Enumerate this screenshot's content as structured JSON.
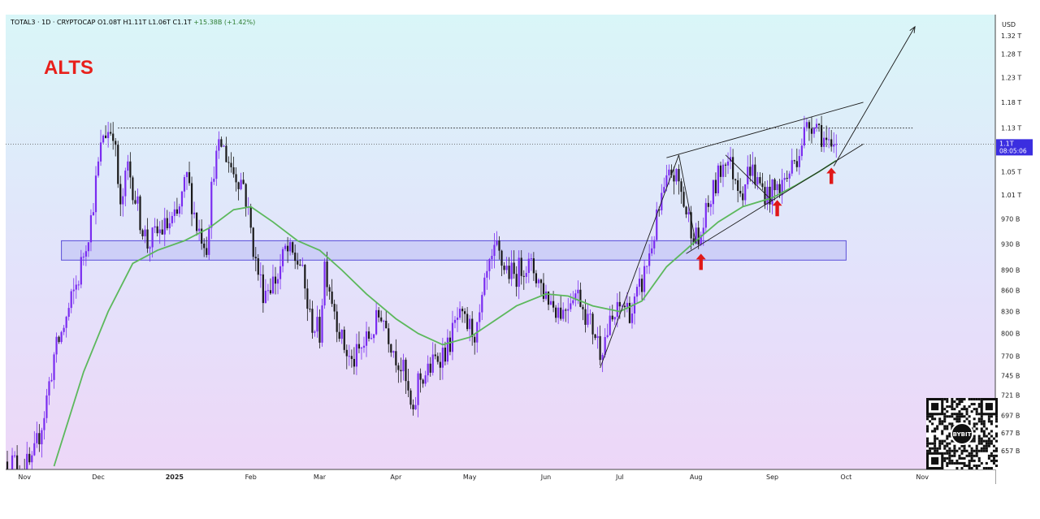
{
  "header": {
    "symbol": "TOTAL3 · 1D · CRYPTOCAP",
    "o_label": "O",
    "o_value": "1.08T",
    "h_label": "H",
    "h_value": "1.11T",
    "l_label": "L",
    "l_value": "1.06T",
    "c_label": "C",
    "c_value": "1.1T",
    "change": "+15.38B (+1.42%)"
  },
  "annotation": {
    "text": "ALTS",
    "color": "#e8201b"
  },
  "currency_label": "USD",
  "last_price": {
    "label": "1.1T",
    "countdown": "08:05:06",
    "value": 1.1
  },
  "qr_logo_text": "BYBIT",
  "colors": {
    "bull": "#7a2cf0",
    "bear": "#1a1a1a",
    "ma": "#5cb85c",
    "zone_fill": "#c6c8f6",
    "zone_border": "#5a4ed8",
    "arrow": "#e01818",
    "price_tag": "#3b2ee0"
  },
  "chart_data": {
    "type": "candlestick",
    "title": "",
    "xlabel": "",
    "ylabel": "",
    "y_scale": "log",
    "ylim": [
      0.64,
      1.36
    ],
    "xlim": [
      "2024-10-25",
      "2025-11-30"
    ],
    "y_ticks": [
      {
        "value": 1.32,
        "label": "1.32 T"
      },
      {
        "value": 1.28,
        "label": "1.28 T"
      },
      {
        "value": 1.23,
        "label": "1.23 T"
      },
      {
        "value": 1.18,
        "label": "1.18 T"
      },
      {
        "value": 1.13,
        "label": "1.13 T"
      },
      {
        "value": 1.05,
        "label": "1.05 T"
      },
      {
        "value": 1.01,
        "label": "1.01 T"
      },
      {
        "value": 0.97,
        "label": "970 B"
      },
      {
        "value": 0.93,
        "label": "930 B"
      },
      {
        "value": 0.89,
        "label": "890 B"
      },
      {
        "value": 0.86,
        "label": "860 B"
      },
      {
        "value": 0.83,
        "label": "830 B"
      },
      {
        "value": 0.8,
        "label": "800 B"
      },
      {
        "value": 0.77,
        "label": "770 B"
      },
      {
        "value": 0.745,
        "label": "745 B"
      },
      {
        "value": 0.721,
        "label": "721 B"
      },
      {
        "value": 0.697,
        "label": "697 B"
      },
      {
        "value": 0.677,
        "label": "677 B"
      },
      {
        "value": 0.657,
        "label": "657 B"
      }
    ],
    "x_ticks": [
      {
        "date": "2024-11-01",
        "label": "Nov"
      },
      {
        "date": "2024-12-01",
        "label": "Dec"
      },
      {
        "date": "2025-01-01",
        "label": "2025"
      },
      {
        "date": "2025-02-01",
        "label": "Feb"
      },
      {
        "date": "2025-03-01",
        "label": "Mar"
      },
      {
        "date": "2025-04-01",
        "label": "Apr"
      },
      {
        "date": "2025-05-01",
        "label": "May"
      },
      {
        "date": "2025-06-01",
        "label": "Jun"
      },
      {
        "date": "2025-07-01",
        "label": "Jul"
      },
      {
        "date": "2025-08-01",
        "label": "Aug"
      },
      {
        "date": "2025-09-01",
        "label": "Sep"
      },
      {
        "date": "2025-10-01",
        "label": "Oct"
      },
      {
        "date": "2025-11-01",
        "label": "Nov"
      }
    ],
    "price_anchors": [
      [
        "2024-10-25",
        0.645
      ],
      [
        "2024-11-04",
        0.64
      ],
      [
        "2024-11-09",
        0.7
      ],
      [
        "2024-11-13",
        0.77
      ],
      [
        "2024-11-18",
        0.82
      ],
      [
        "2024-11-23",
        0.88
      ],
      [
        "2024-11-28",
        0.97
      ],
      [
        "2024-12-03",
        1.12
      ],
      [
        "2024-12-07",
        1.13
      ],
      [
        "2024-12-10",
        0.98
      ],
      [
        "2024-12-13",
        1.06
      ],
      [
        "2024-12-18",
        0.97
      ],
      [
        "2024-12-21",
        0.93
      ],
      [
        "2024-12-26",
        0.95
      ],
      [
        "2025-01-02",
        0.97
      ],
      [
        "2025-01-06",
        1.04
      ],
      [
        "2025-01-10",
        0.96
      ],
      [
        "2025-01-14",
        0.93
      ],
      [
        "2025-01-17",
        1.06
      ],
      [
        "2025-01-20",
        1.1
      ],
      [
        "2025-01-25",
        1.05
      ],
      [
        "2025-01-29",
        1.03
      ],
      [
        "2025-02-03",
        0.9
      ],
      [
        "2025-02-06",
        0.86
      ],
      [
        "2025-02-12",
        0.88
      ],
      [
        "2025-02-15",
        0.92
      ],
      [
        "2025-02-21",
        0.9
      ],
      [
        "2025-02-25",
        0.82
      ],
      [
        "2025-03-01",
        0.8
      ],
      [
        "2025-03-03",
        0.9
      ],
      [
        "2025-03-06",
        0.85
      ],
      [
        "2025-03-10",
        0.79
      ],
      [
        "2025-03-14",
        0.76
      ],
      [
        "2025-03-18",
        0.78
      ],
      [
        "2025-03-22",
        0.8
      ],
      [
        "2025-03-26",
        0.83
      ],
      [
        "2025-03-31",
        0.78
      ],
      [
        "2025-04-04",
        0.75
      ],
      [
        "2025-04-08",
        0.69
      ],
      [
        "2025-04-10",
        0.74
      ],
      [
        "2025-04-14",
        0.75
      ],
      [
        "2025-04-18",
        0.77
      ],
      [
        "2025-04-22",
        0.78
      ],
      [
        "2025-04-26",
        0.82
      ],
      [
        "2025-04-30",
        0.81
      ],
      [
        "2025-05-04",
        0.8
      ],
      [
        "2025-05-08",
        0.88
      ],
      [
        "2025-05-12",
        0.92
      ],
      [
        "2025-05-14",
        0.9
      ],
      [
        "2025-05-19",
        0.88
      ],
      [
        "2025-05-23",
        0.9
      ],
      [
        "2025-05-27",
        0.89
      ],
      [
        "2025-05-31",
        0.86
      ],
      [
        "2025-06-04",
        0.84
      ],
      [
        "2025-06-08",
        0.83
      ],
      [
        "2025-06-12",
        0.86
      ],
      [
        "2025-06-15",
        0.85
      ],
      [
        "2025-06-18",
        0.82
      ],
      [
        "2025-06-21",
        0.8
      ],
      [
        "2025-06-23",
        0.78
      ],
      [
        "2025-06-27",
        0.81
      ],
      [
        "2025-07-02",
        0.84
      ],
      [
        "2025-07-06",
        0.83
      ],
      [
        "2025-07-10",
        0.87
      ],
      [
        "2025-07-14",
        0.93
      ],
      [
        "2025-07-18",
        1.0
      ],
      [
        "2025-07-22",
        1.05
      ],
      [
        "2025-07-25",
        1.03
      ],
      [
        "2025-07-28",
        0.98
      ],
      [
        "2025-08-02",
        0.93
      ],
      [
        "2025-08-06",
        0.99
      ],
      [
        "2025-08-10",
        1.04
      ],
      [
        "2025-08-13",
        1.08
      ],
      [
        "2025-08-16",
        1.05
      ],
      [
        "2025-08-20",
        1.02
      ],
      [
        "2025-08-23",
        1.06
      ],
      [
        "2025-08-26",
        1.03
      ],
      [
        "2025-08-30",
        1.01
      ],
      [
        "2025-09-03",
        1.02
      ],
      [
        "2025-09-07",
        1.04
      ],
      [
        "2025-09-11",
        1.08
      ],
      [
        "2025-09-14",
        1.12
      ],
      [
        "2025-09-18",
        1.15
      ],
      [
        "2025-09-22",
        1.11
      ],
      [
        "2025-09-25",
        1.08
      ],
      [
        "2025-09-27",
        1.1
      ]
    ],
    "moving_average": [
      [
        "2024-11-13",
        0.64
      ],
      [
        "2024-11-25",
        0.75
      ],
      [
        "2024-12-05",
        0.83
      ],
      [
        "2024-12-15",
        0.9
      ],
      [
        "2024-12-25",
        0.92
      ],
      [
        "2025-01-05",
        0.935
      ],
      [
        "2025-01-15",
        0.955
      ],
      [
        "2025-01-25",
        0.985
      ],
      [
        "2025-02-01",
        0.99
      ],
      [
        "2025-02-10",
        0.965
      ],
      [
        "2025-02-20",
        0.935
      ],
      [
        "2025-03-01",
        0.92
      ],
      [
        "2025-03-10",
        0.89
      ],
      [
        "2025-03-20",
        0.855
      ],
      [
        "2025-04-01",
        0.82
      ],
      [
        "2025-04-10",
        0.8
      ],
      [
        "2025-04-20",
        0.785
      ],
      [
        "2025-05-01",
        0.795
      ],
      [
        "2025-05-10",
        0.815
      ],
      [
        "2025-05-20",
        0.838
      ],
      [
        "2025-06-01",
        0.855
      ],
      [
        "2025-06-10",
        0.852
      ],
      [
        "2025-06-20",
        0.838
      ],
      [
        "2025-07-01",
        0.83
      ],
      [
        "2025-07-10",
        0.845
      ],
      [
        "2025-07-20",
        0.895
      ],
      [
        "2025-08-01",
        0.935
      ],
      [
        "2025-08-10",
        0.965
      ],
      [
        "2025-08-20",
        0.99
      ],
      [
        "2025-09-01",
        1.005
      ],
      [
        "2025-09-10",
        1.025
      ],
      [
        "2025-09-20",
        1.05
      ],
      [
        "2025-09-27",
        1.07
      ]
    ],
    "support_zone": {
      "from": "2024-11-16",
      "to": "2025-10-01",
      "low": 0.905,
      "high": 0.935
    },
    "resistance_line": {
      "value": 1.13,
      "from": "2024-12-09",
      "to": "2025-10-28"
    },
    "current_price_line": {
      "value": 1.1
    },
    "trendlines": [
      {
        "name": "channel-upper",
        "from": [
          "2025-07-20",
          1.075
        ],
        "to": [
          "2025-10-08",
          1.18
        ]
      },
      {
        "name": "channel-lower",
        "from": [
          "2025-07-28",
          0.915
        ],
        "to": [
          "2025-10-08",
          1.1
        ]
      },
      {
        "name": "rally-line",
        "from": [
          "2025-06-23",
          0.755
        ],
        "to": [
          "2025-07-25",
          1.08
        ]
      },
      {
        "name": "swing-1",
        "from": [
          "2025-07-25",
          1.08
        ],
        "to": [
          "2025-08-01",
          0.93
        ]
      },
      {
        "name": "swing-2",
        "from": [
          "2025-08-13",
          1.08
        ],
        "to": [
          "2025-09-01",
          1.0
        ]
      },
      {
        "name": "projection",
        "from": [
          "2025-09-26",
          1.06
        ],
        "to": [
          "2025-10-29",
          1.34
        ]
      }
    ],
    "markers": [
      {
        "type": "up-arrow",
        "date": "2025-08-03",
        "value": 0.9
      },
      {
        "type": "up-arrow",
        "date": "2025-09-03",
        "value": 0.985
      },
      {
        "type": "up-arrow",
        "date": "2025-09-25",
        "value": 1.04
      }
    ],
    "grid": false,
    "legend": "none"
  }
}
